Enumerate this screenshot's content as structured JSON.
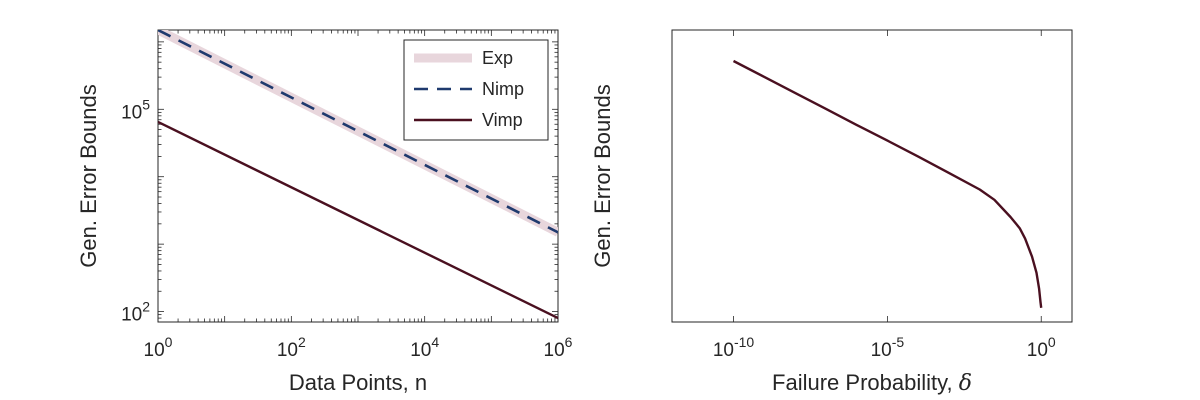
{
  "chart_data": [
    {
      "type": "line",
      "xlabel": "Data Points, n",
      "ylabel": "Gen. Error Bounds",
      "xscale": "log",
      "yscale": "log",
      "xlim": [
        1,
        1000000
      ],
      "ylim": [
        70,
        1500000
      ],
      "grid": false,
      "legend_position": "top-right",
      "xticks": [
        {
          "value": 1,
          "base": "10",
          "exp": "0"
        },
        {
          "value": 100,
          "base": "10",
          "exp": "2"
        },
        {
          "value": 10000,
          "base": "10",
          "exp": "4"
        },
        {
          "value": 1000000,
          "base": "10",
          "exp": "6"
        }
      ],
      "yticks": [
        {
          "value": 100,
          "base": "10",
          "exp": "2"
        },
        {
          "value": 100000,
          "base": "10",
          "exp": "5"
        }
      ],
      "series": [
        {
          "name": "Exp",
          "color": "#e8d6dc",
          "style": "thick-solid",
          "x": [
            1,
            1000000
          ],
          "y": [
            1500000,
            1500
          ]
        },
        {
          "name": "Nimp",
          "color": "#1f3a6e",
          "style": "dashed",
          "x": [
            1,
            1000000
          ],
          "y": [
            1500000,
            1500
          ]
        },
        {
          "name": "Vimp",
          "color": "#4a1020",
          "style": "solid",
          "x": [
            1,
            1000000
          ],
          "y": [
            65000,
            80
          ]
        }
      ]
    },
    {
      "type": "line",
      "xlabel": "Failure Probability, ",
      "xlabel_symbol": "δ",
      "ylabel": "Gen. Error Bounds",
      "xscale": "log",
      "yscale": "log",
      "xlim": [
        1e-12,
        10
      ],
      "ylim": [
        1,
        1000
      ],
      "grid": false,
      "legend_position": "none",
      "xticks": [
        {
          "value": 1e-10,
          "base": "10",
          "exp": "-10"
        },
        {
          "value": 1e-05,
          "base": "10",
          "exp": "-5"
        },
        {
          "value": 1,
          "base": "10",
          "exp": "0"
        }
      ],
      "series": [
        {
          "color": "#4a1020",
          "style": "solid",
          "x": [
            1e-10,
            1e-09,
            1e-08,
            1e-07,
            1e-06,
            1e-05,
            0.0001,
            0.001,
            0.01,
            0.03,
            0.1,
            0.2,
            0.3,
            0.5,
            0.7,
            0.85,
            0.95,
            1.0
          ],
          "y": [
            480,
            330,
            226,
            155,
            106,
            73,
            50,
            34,
            23,
            18,
            12,
            9.2,
            7.2,
            4.7,
            3.2,
            2.2,
            1.6,
            1.4
          ]
        }
      ]
    }
  ]
}
